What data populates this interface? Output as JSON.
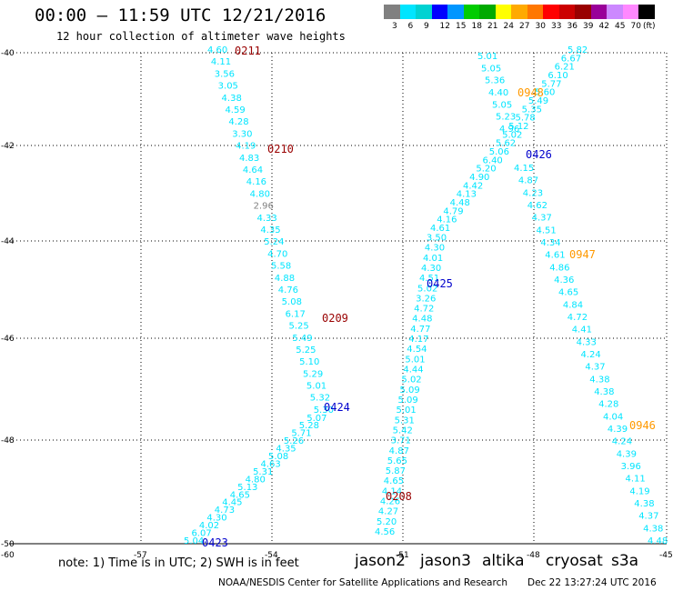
{
  "header": {
    "title": "00:00 – 11:59 UTC 12/21/2016",
    "subtitle": "12 hour collection of altimeter wave heights"
  },
  "scale": {
    "colors": [
      "#808080",
      "#00e5ff",
      "#00d2d2",
      "#0000ff",
      "#0096ff",
      "#00cc00",
      "#00aa00",
      "#ffff00",
      "#ffaa00",
      "#ff7700",
      "#ff0000",
      "#cc0000",
      "#990000",
      "#990099",
      "#cc88ff",
      "#ff88ff",
      "#000000"
    ],
    "labels": [
      "3",
      "6",
      "9",
      "12",
      "15",
      "18",
      "21",
      "24",
      "27",
      "30",
      "33",
      "36",
      "39",
      "42",
      "45",
      "70",
      "(ft)"
    ]
  },
  "axes": {
    "lat_labels": [
      "-40",
      "-42",
      "-44",
      "-46",
      "-48",
      "-50"
    ],
    "lon_labels": [
      "-60",
      "-57",
      "-54",
      "-51",
      "-48",
      "-45"
    ]
  },
  "tracks": [
    {
      "id": "track-a",
      "color": "#00e5ff",
      "values": [
        "4.60",
        "4.11",
        "3.56",
        "3.05",
        "4.38",
        "4.59",
        "4.28",
        "3.30",
        "4.19",
        "4.83",
        "4.64",
        "4.16",
        "4.80",
        "2.96",
        "4.33",
        "4.35",
        "5.24",
        "4.70",
        "5.58",
        "4.88",
        "4.76",
        "5.08",
        "6.17",
        "5.25",
        "5.49",
        "5.25",
        "5.10",
        "5.29",
        "5.01",
        "5.32",
        "5.30",
        "5.07",
        "5.28",
        "5.71",
        "5.26",
        "4.35",
        "5.08",
        "4.63",
        "5.31",
        "4.80",
        "5.13",
        "4.65",
        "4.45",
        "4.73",
        "4.30",
        "4.02",
        "6.07",
        "5.04"
      ]
    },
    {
      "id": "track-b",
      "color": "#00e5ff",
      "values": [
        "5.82",
        "6.67",
        "6.21",
        "6.10",
        "5.77",
        "5.60",
        "5.49",
        "5.35",
        "5.78",
        "5.12",
        "5.02",
        "5.62",
        "5.06",
        "6.40",
        "5.20",
        "4.90",
        "4.42",
        "4.13",
        "4.48",
        "4.79",
        "4.16",
        "4.61",
        "3.50",
        "4.30",
        "4.01",
        "4.30",
        "4.51",
        "5.02",
        "3.26",
        "4.72",
        "4.48",
        "4.77",
        "4.17",
        "4.54",
        "5.01",
        "4.44",
        "5.02",
        "5.09",
        "5.09",
        "5.01",
        "5.31",
        "5.42",
        "3.71",
        "4.87",
        "5.65",
        "5.87",
        "4.65",
        "4.14",
        "4.26",
        "4.27",
        "5.20",
        "4.56"
      ]
    },
    {
      "id": "track-c",
      "color": "#00e5ff",
      "values": [
        "5.01",
        "5.05",
        "5.36",
        "4.40",
        "5.05",
        "5.23",
        "4.96"
      ]
    },
    {
      "id": "track-d",
      "color": "#00e5ff",
      "values": [
        "4.15",
        "4.87",
        "4.23",
        "4.62",
        "4.37",
        "4.51",
        "4.34",
        "4.61",
        "4.86",
        "4.36",
        "4.65",
        "4.84",
        "4.72",
        "4.41",
        "4.33",
        "4.24",
        "4.37",
        "4.38",
        "4.38",
        "4.28",
        "4.04",
        "4.39",
        "4.24",
        "4.39",
        "3.96",
        "4.11",
        "4.19",
        "4.38",
        "4.37",
        "4.38",
        "4.48"
      ]
    }
  ],
  "time_labels": [
    {
      "text": "0211",
      "color": "#990000"
    },
    {
      "text": "0210",
      "color": "#990000"
    },
    {
      "text": "0209",
      "color": "#990000"
    },
    {
      "text": "0208",
      "color": "#990000"
    },
    {
      "text": "0948",
      "color": "#ff9900"
    },
    {
      "text": "0947",
      "color": "#ff9900"
    },
    {
      "text": "0946",
      "color": "#ff9900"
    },
    {
      "text": "0426",
      "color": "#0000cc"
    },
    {
      "text": "0425",
      "color": "#0000cc"
    },
    {
      "text": "0424",
      "color": "#0000cc"
    },
    {
      "text": "0423",
      "color": "#0000cc"
    }
  ],
  "footer": {
    "note": "note: 1) Time is in UTC; 2) SWH is in feet",
    "legend": [
      {
        "name": "jason2",
        "color": "#0000ff"
      },
      {
        "name": "jason3",
        "color": "#00aa00"
      },
      {
        "name": "altika",
        "color": "#ff9900"
      },
      {
        "name": "cryosat",
        "color": "#ff0000"
      },
      {
        "name": "s3a",
        "color": "#990000"
      }
    ],
    "credit": "NOAA/NESDIS Center for Satellite Applications and Research",
    "stamp": "Dec 22 13:27:24 UTC 2016"
  }
}
